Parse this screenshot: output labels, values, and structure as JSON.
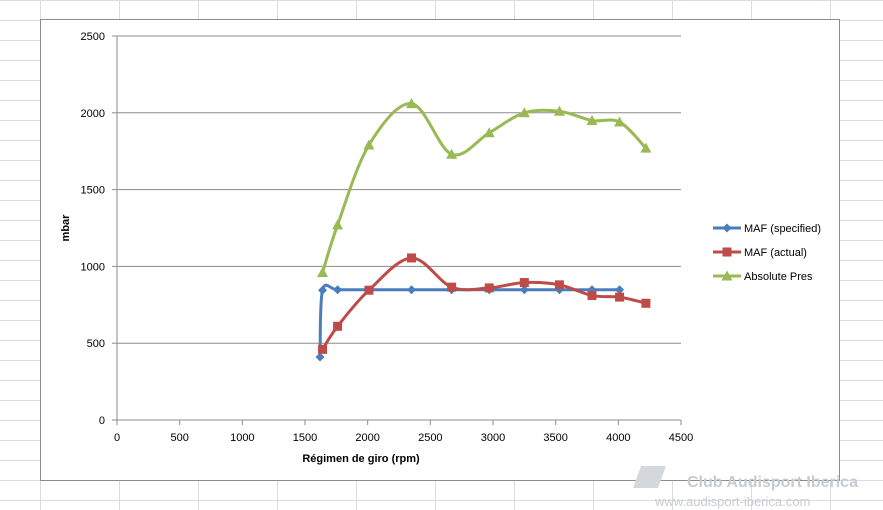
{
  "chart_data": {
    "type": "line",
    "title": "",
    "xlabel": "Régimen de giro (rpm)",
    "ylabel": "mbar",
    "xlim": [
      0,
      4500
    ],
    "ylim": [
      0,
      2500
    ],
    "x_ticks": [
      "0",
      "500",
      "1000",
      "1500",
      "2000",
      "2500",
      "3000",
      "3500",
      "4000",
      "4500"
    ],
    "y_ticks": [
      "0",
      "500",
      "1000",
      "1500",
      "2000",
      "2500"
    ],
    "grid": "horizontal",
    "legend_position": "right",
    "smoothed": true,
    "series": [
      {
        "name": "MAF (specified)",
        "color": "#4a7ebb",
        "marker": "diamond",
        "points": [
          [
            1620,
            410
          ],
          [
            1640,
            845
          ],
          [
            1760,
            848
          ],
          [
            2020,
            848
          ],
          [
            2350,
            848
          ],
          [
            2670,
            848
          ],
          [
            2970,
            848
          ],
          [
            3250,
            848
          ],
          [
            3530,
            848
          ],
          [
            3790,
            848
          ],
          [
            4010,
            848
          ]
        ]
      },
      {
        "name": "MAF (actual)",
        "color": "#be4b48",
        "marker": "square",
        "points": [
          [
            1640,
            460
          ],
          [
            1760,
            610
          ],
          [
            2010,
            845
          ],
          [
            2350,
            1055
          ],
          [
            2670,
            865
          ],
          [
            2970,
            860
          ],
          [
            3250,
            895
          ],
          [
            3530,
            880
          ],
          [
            3790,
            810
          ],
          [
            4010,
            800
          ],
          [
            4220,
            760
          ]
        ]
      },
      {
        "name": "Absolute Pres",
        "color": "#98b954",
        "marker": "triangle",
        "points": [
          [
            1640,
            960
          ],
          [
            1760,
            1270
          ],
          [
            2010,
            1790
          ],
          [
            2350,
            2060
          ],
          [
            2670,
            1730
          ],
          [
            2970,
            1870
          ],
          [
            3250,
            2000
          ],
          [
            3530,
            2010
          ],
          [
            3790,
            1950
          ],
          [
            4010,
            1940
          ],
          [
            4220,
            1770
          ]
        ]
      }
    ]
  },
  "watermark": {
    "title": "Club Audisport Iberica",
    "url": "www.audisport-iberica.com"
  }
}
